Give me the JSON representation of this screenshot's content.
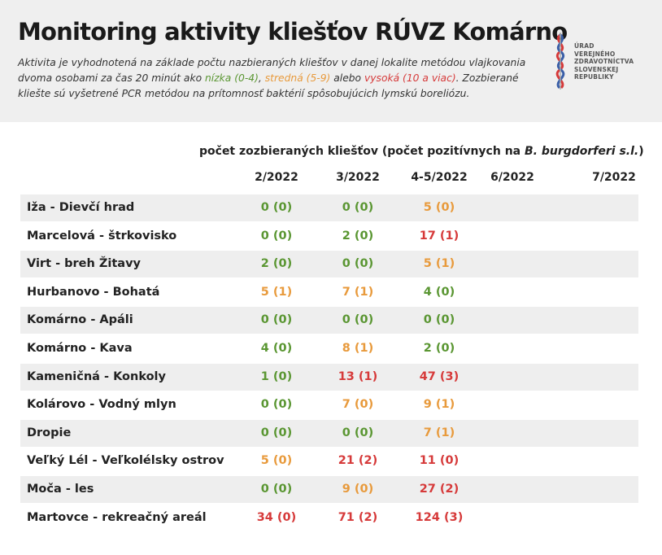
{
  "header": {
    "title": "Monitoring aktivity kliešťov RÚVZ Komárno",
    "description": [
      {
        "text": "Aktivita je vyhodnotená na základe počtu nazbieraných kliešťov v danej lokalite metódou vlajkovania dvoma osobami za čas 20 minút ako "
      },
      {
        "text": "nízka (0-4)",
        "color": "#5a9632"
      },
      {
        "text": ", "
      },
      {
        "text": "stredná (5-9)",
        "color": "#e89a3c"
      },
      {
        "text": " alebo "
      },
      {
        "text": "vysoká (10 a viac)",
        "color": "#d63a3a"
      },
      {
        "text": ". Zozbierané kliešte sú vyšetrené PCR metódou na prítomnosť baktérií spôsobujúcich lymskú boreliózu."
      }
    ],
    "logo_lines": [
      "ÚRAD",
      "VEREJNÉHO",
      "ZDRAVOTNÍCTVA",
      "SLOVENSKEJ",
      "REPUBLIKY"
    ]
  },
  "table": {
    "subheader": [
      "počet zozbieraných kliešťov (počet pozitívnych na ",
      "B. burgdorferi s.l.",
      ")"
    ],
    "columns": [
      "2/2022",
      "3/2022",
      "4-5/2022",
      "6/2022",
      "7/2022"
    ],
    "rows": [
      {
        "name": "Iža - Dievčí hrad",
        "cells": [
          {
            "text": "0 (0)",
            "color": "#5a9632"
          },
          {
            "text": "0 (0)",
            "color": "#5a9632"
          },
          {
            "text": "5 (0)",
            "color": "#e89a3c"
          }
        ]
      },
      {
        "name": "Marcelová - štrkovisko",
        "cells": [
          {
            "text": "0 (0)",
            "color": "#5a9632"
          },
          {
            "text": "2 (0)",
            "color": "#5a9632"
          },
          {
            "text": "17 (1)",
            "color": "#d63a3a"
          }
        ]
      },
      {
        "name": "Virt - breh Žitavy",
        "cells": [
          {
            "text": "2 (0)",
            "color": "#5a9632"
          },
          {
            "text": "0 (0)",
            "color": "#5a9632"
          },
          {
            "text": "5 (1)",
            "color": "#e89a3c"
          }
        ]
      },
      {
        "name": "Hurbanovo - Bohatá",
        "cells": [
          {
            "text": "5 (1)",
            "color": "#e89a3c"
          },
          {
            "text": "7 (1)",
            "color": "#e89a3c"
          },
          {
            "text": "4 (0)",
            "color": "#5a9632"
          }
        ]
      },
      {
        "name": "Komárno - Apáli",
        "cells": [
          {
            "text": "0 (0)",
            "color": "#5a9632"
          },
          {
            "text": "0 (0)",
            "color": "#5a9632"
          },
          {
            "text": "0 (0)",
            "color": "#5a9632"
          }
        ]
      },
      {
        "name": "Komárno - Kava",
        "cells": [
          {
            "text": "4 (0)",
            "color": "#5a9632"
          },
          {
            "text": "8 (1)",
            "color": "#e89a3c"
          },
          {
            "text": "2 (0)",
            "color": "#5a9632"
          }
        ]
      },
      {
        "name": "Kameničná - Konkoly",
        "cells": [
          {
            "text": "1 (0)",
            "color": "#5a9632"
          },
          {
            "text": "13 (1)",
            "color": "#d63a3a"
          },
          {
            "text": "47 (3)",
            "color": "#d63a3a"
          }
        ]
      },
      {
        "name": "Kolárovo - Vodný mlyn",
        "cells": [
          {
            "text": "0 (0)",
            "color": "#5a9632"
          },
          {
            "text": "7 (0)",
            "color": "#e89a3c"
          },
          {
            "text": "9 (1)",
            "color": "#e89a3c"
          }
        ]
      },
      {
        "name": "Dropie",
        "cells": [
          {
            "text": "0 (0)",
            "color": "#5a9632"
          },
          {
            "text": "0 (0)",
            "color": "#5a9632"
          },
          {
            "text": "7 (1)",
            "color": "#e89a3c"
          }
        ]
      },
      {
        "name": "Veľký Lél - Veľkolélsky ostrov",
        "cells": [
          {
            "text": "5 (0)",
            "color": "#e89a3c"
          },
          {
            "text": "21 (2)",
            "color": "#d63a3a"
          },
          {
            "text": "11 (0)",
            "color": "#d63a3a"
          }
        ]
      },
      {
        "name": "Moča - les",
        "cells": [
          {
            "text": "0 (0)",
            "color": "#5a9632"
          },
          {
            "text": "9 (0)",
            "color": "#e89a3c"
          },
          {
            "text": "27 (2)",
            "color": "#d63a3a"
          }
        ]
      },
      {
        "name": "Martovce - rekreačný areál",
        "cells": [
          {
            "text": "34 (0)",
            "color": "#d63a3a"
          },
          {
            "text": "71 (2)",
            "color": "#d63a3a"
          },
          {
            "text": "124 (3)",
            "color": "#d63a3a"
          }
        ]
      }
    ]
  }
}
